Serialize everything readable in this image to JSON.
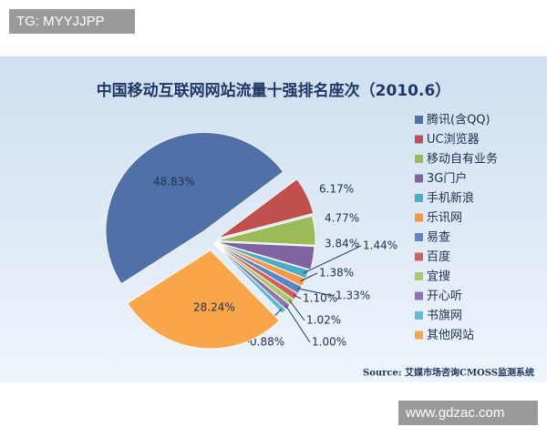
{
  "overlay": {
    "top_left": "TG: MYYJJPP",
    "bottom_right": "www.gdzac.com"
  },
  "chart_data": {
    "type": "pie",
    "title": "中国移动互联网网站流量十强排名座次（2010.6）",
    "source": "Source: 艾媒市场咨询CMOSS监测系统",
    "categories": [
      "腾讯(含QQ)",
      "UC浏览器",
      "移动自有业务",
      "3G门户",
      "手机新浪",
      "乐讯网",
      "易查",
      "百度",
      "宜搜",
      "开心听",
      "书旗网",
      "其他网站"
    ],
    "values": [
      48.83,
      6.17,
      4.77,
      3.84,
      1.44,
      1.38,
      1.33,
      1.1,
      1.02,
      1.0,
      0.88,
      28.24
    ],
    "value_labels": [
      "48.83%",
      "6.17%",
      "4.77%",
      "3.84%",
      "1.44%",
      "1.38%",
      "1.33%",
      "1.10%",
      "1.02%",
      "1.00%",
      "0.88%",
      "28.24%"
    ],
    "colors": [
      "#4f71a8",
      "#c0504d",
      "#9bbb59",
      "#8064a2",
      "#4bacc6",
      "#f79646",
      "#5b86c4",
      "#d0625e",
      "#a9c96a",
      "#8f74b0",
      "#5fbcd4",
      "#f9a64a"
    ],
    "legend": "right"
  }
}
